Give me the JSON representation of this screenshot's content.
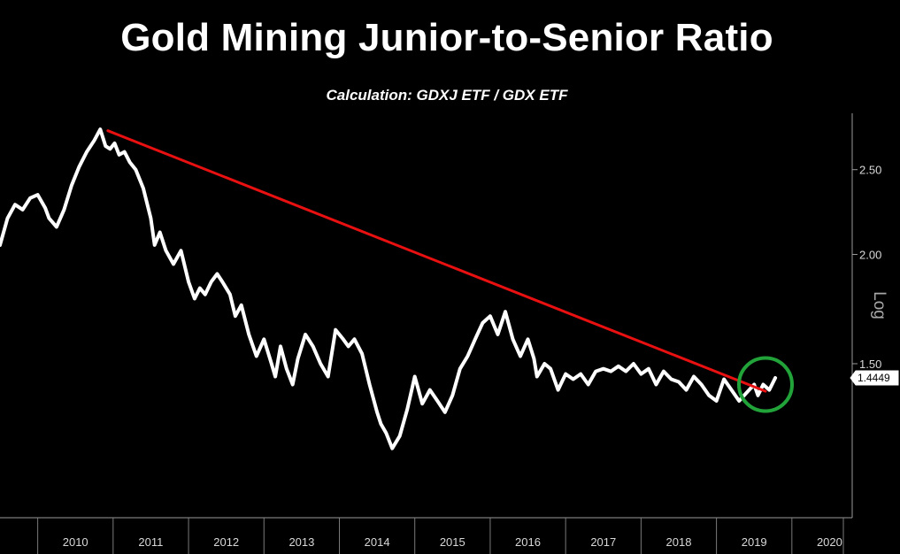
{
  "chart_data": {
    "type": "line",
    "title": "Gold Mining Junior-to-Senior Ratio",
    "subtitle": "Calculation: GDXJ ETF / GDX ETF",
    "y_scale": "log",
    "y_scale_label": "Log",
    "y_ticks": [
      1.5,
      2.0,
      2.5
    ],
    "y_tick_labels": [
      "1.50",
      "2.00",
      "2.50"
    ],
    "ylim": [
      1.0,
      2.9
    ],
    "x_tick_labels": [
      "2010",
      "2011",
      "2012",
      "2013",
      "2014",
      "2015",
      "2016",
      "2017",
      "2018",
      "2019",
      "2020"
    ],
    "xlim": [
      2009.5,
      2020.8
    ],
    "last_value": 1.4449,
    "last_value_label": "1.4449",
    "series": [
      {
        "color": "#ffffff",
        "x": [
          2009.5,
          2009.6,
          2009.7,
          2009.8,
          2009.9,
          2010.0,
          2010.1,
          2010.15,
          2010.25,
          2010.35,
          2010.45,
          2010.55,
          2010.65,
          2010.75,
          2010.83,
          2010.9,
          2010.96,
          2011.02,
          2011.08,
          2011.15,
          2011.22,
          2011.3,
          2011.4,
          2011.5,
          2011.55,
          2011.62,
          2011.7,
          2011.8,
          2011.9,
          2012.0,
          2012.08,
          2012.15,
          2012.22,
          2012.3,
          2012.38,
          2012.45,
          2012.55,
          2012.62,
          2012.7,
          2012.8,
          2012.9,
          2013.0,
          2013.1,
          2013.15,
          2013.22,
          2013.3,
          2013.38,
          2013.45,
          2013.55,
          2013.65,
          2013.75,
          2013.85,
          2013.95,
          2014.05,
          2014.12,
          2014.2,
          2014.3,
          2014.4,
          2014.5,
          2014.55,
          2014.62,
          2014.7,
          2014.8,
          2014.9,
          2015.0,
          2015.1,
          2015.2,
          2015.3,
          2015.4,
          2015.5,
          2015.6,
          2015.7,
          2015.8,
          2015.9,
          2016.0,
          2016.1,
          2016.2,
          2016.3,
          2016.4,
          2016.5,
          2016.58,
          2016.62,
          2016.72,
          2016.8,
          2016.9,
          2017.0,
          2017.1,
          2017.2,
          2017.3,
          2017.4,
          2017.5,
          2017.6,
          2017.7,
          2017.8,
          2017.9,
          2018.0,
          2018.1,
          2018.2,
          2018.3,
          2018.4,
          2018.5,
          2018.6,
          2018.7,
          2018.8,
          2018.9,
          2019.0,
          2019.1,
          2019.2,
          2019.3,
          2019.4,
          2019.5,
          2019.55,
          2019.62,
          2019.7,
          2019.78
        ],
        "values": [
          2.05,
          2.2,
          2.28,
          2.25,
          2.32,
          2.34,
          2.26,
          2.2,
          2.15,
          2.25,
          2.4,
          2.52,
          2.62,
          2.7,
          2.78,
          2.66,
          2.64,
          2.68,
          2.6,
          2.62,
          2.55,
          2.5,
          2.38,
          2.2,
          2.05,
          2.12,
          2.02,
          1.95,
          2.02,
          1.86,
          1.78,
          1.83,
          1.8,
          1.86,
          1.9,
          1.86,
          1.8,
          1.7,
          1.75,
          1.62,
          1.53,
          1.6,
          1.5,
          1.45,
          1.57,
          1.48,
          1.42,
          1.52,
          1.62,
          1.57,
          1.5,
          1.45,
          1.64,
          1.6,
          1.57,
          1.6,
          1.54,
          1.42,
          1.32,
          1.28,
          1.25,
          1.2,
          1.24,
          1.33,
          1.45,
          1.35,
          1.4,
          1.36,
          1.32,
          1.38,
          1.48,
          1.53,
          1.6,
          1.67,
          1.7,
          1.62,
          1.72,
          1.6,
          1.53,
          1.6,
          1.52,
          1.45,
          1.5,
          1.48,
          1.4,
          1.46,
          1.44,
          1.46,
          1.42,
          1.47,
          1.48,
          1.47,
          1.49,
          1.47,
          1.5,
          1.46,
          1.48,
          1.42,
          1.47,
          1.44,
          1.43,
          1.4,
          1.45,
          1.42,
          1.38,
          1.36,
          1.44,
          1.4,
          1.36,
          1.39,
          1.42,
          1.38,
          1.42,
          1.4,
          1.4449
        ]
      },
      {
        "name": "trendline",
        "color": "#e81010",
        "x": [
          2010.93,
          2019.65
        ],
        "values": [
          2.77,
          1.395
        ]
      }
    ],
    "annotations": [
      {
        "type": "circle",
        "color": "#22a33a",
        "x": 2019.65,
        "y": 1.42
      }
    ],
    "grid": false,
    "legend": "none"
  }
}
